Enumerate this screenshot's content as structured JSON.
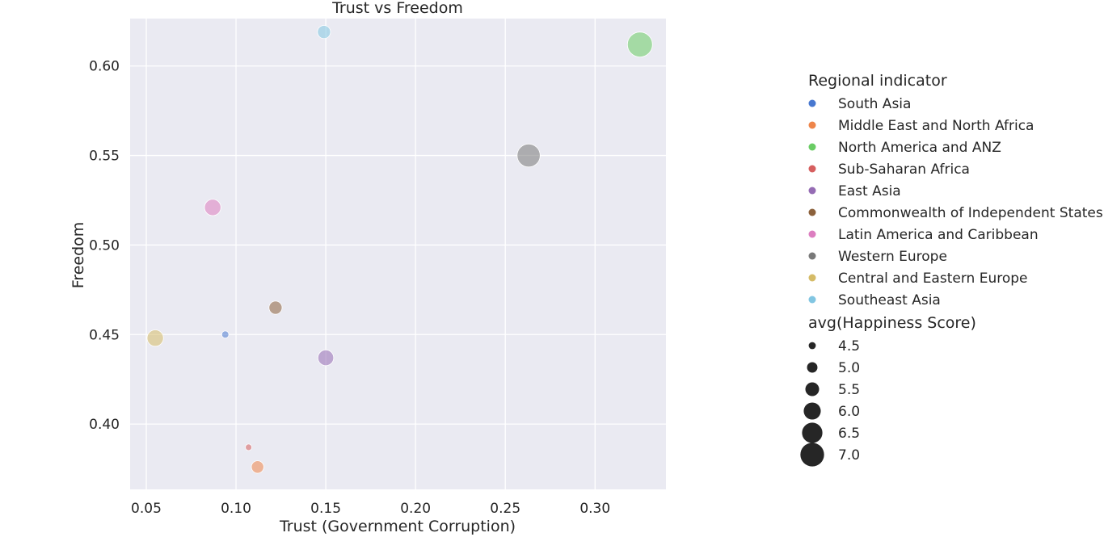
{
  "chart_data": {
    "type": "scatter",
    "title": "Trust vs Freedom",
    "xlabel": "Trust (Government Corruption)",
    "ylabel": "Freedom",
    "xlim": [
      0.041,
      0.3395
    ],
    "ylim": [
      0.3635,
      0.6265
    ],
    "x_ticks": [
      0.05,
      0.1,
      0.15,
      0.2,
      0.25,
      0.3
    ],
    "x_tick_labels": [
      "0.05",
      "0.10",
      "0.15",
      "0.20",
      "0.25",
      "0.30"
    ],
    "y_ticks": [
      0.4,
      0.45,
      0.5,
      0.55,
      0.6
    ],
    "y_tick_labels": [
      "0.40",
      "0.45",
      "0.50",
      "0.55",
      "0.60"
    ],
    "grid": true,
    "legend_placement": "right",
    "hue_title": "Regional indicator",
    "size_title": "avg(Happiness Score)",
    "series": [
      {
        "name": "South Asia",
        "color": "#4878d0",
        "x": 0.094,
        "y": 0.45,
        "size": 4.5
      },
      {
        "name": "Middle East and North Africa",
        "color": "#ee854a",
        "x": 0.112,
        "y": 0.376,
        "size": 5.3
      },
      {
        "name": "North America and ANZ",
        "color": "#6acc64",
        "x": 0.325,
        "y": 0.612,
        "size": 7.2
      },
      {
        "name": "Sub-Saharan Africa",
        "color": "#d65f5f",
        "x": 0.107,
        "y": 0.387,
        "size": 4.4
      },
      {
        "name": "East Asia",
        "color": "#956cb4",
        "x": 0.15,
        "y": 0.437,
        "size": 5.8
      },
      {
        "name": "Commonwealth of Independent States",
        "color": "#8c613c",
        "x": 0.122,
        "y": 0.465,
        "size": 5.4
      },
      {
        "name": "Latin America and Caribbean",
        "color": "#dc7ec0",
        "x": 0.087,
        "y": 0.521,
        "size": 5.9
      },
      {
        "name": "Western Europe",
        "color": "#797979",
        "x": 0.263,
        "y": 0.55,
        "size": 6.9
      },
      {
        "name": "Central and Eastern Europe",
        "color": "#d5bb67",
        "x": 0.055,
        "y": 0.448,
        "size": 5.9
      },
      {
        "name": "Southeast Asia",
        "color": "#82c6e2",
        "x": 0.149,
        "y": 0.619,
        "size": 5.4
      }
    ],
    "size_legend": [
      {
        "label": "4.5",
        "value": 4.5
      },
      {
        "label": "5.0",
        "value": 5.0
      },
      {
        "label": "5.5",
        "value": 5.5
      },
      {
        "label": "6.0",
        "value": 6.0
      },
      {
        "label": "6.5",
        "value": 6.5
      },
      {
        "label": "7.0",
        "value": 7.0
      }
    ],
    "colors": {
      "plot_background": "#eaeaf2",
      "grid": "#ffffff",
      "size_legend_marker": "#262626"
    }
  }
}
